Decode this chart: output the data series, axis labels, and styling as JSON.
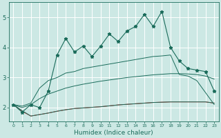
{
  "xlabel": "Humidex (Indice chaleur)",
  "bg_color": "#cce8e4",
  "grid_color": "#ffffff",
  "line_color": "#1a6b5a",
  "red_color": "#cc2222",
  "xlim": [
    -0.5,
    23.5
  ],
  "ylim": [
    1.55,
    5.5
  ],
  "yticks": [
    2,
    3,
    4,
    5
  ],
  "xticks": [
    0,
    1,
    2,
    3,
    4,
    5,
    6,
    7,
    8,
    9,
    10,
    11,
    12,
    13,
    14,
    15,
    16,
    17,
    18,
    19,
    20,
    21,
    22,
    23
  ],
  "series_main": [
    2.1,
    1.85,
    2.1,
    2.0,
    2.55,
    3.75,
    4.3,
    3.85,
    4.05,
    3.7,
    4.05,
    4.45,
    4.2,
    4.55,
    4.7,
    5.1,
    4.7,
    5.2,
    4.0,
    3.55,
    3.3,
    3.25,
    3.2,
    2.55
  ],
  "series_upper": [
    2.1,
    2.05,
    2.15,
    2.65,
    2.9,
    3.0,
    3.15,
    3.2,
    3.3,
    3.35,
    3.4,
    3.45,
    3.5,
    3.55,
    3.6,
    3.65,
    3.7,
    3.72,
    3.75,
    3.1,
    3.05,
    2.9,
    2.5,
    2.1
  ],
  "series_mid": [
    2.1,
    2.0,
    2.1,
    2.3,
    2.45,
    2.55,
    2.65,
    2.72,
    2.78,
    2.83,
    2.88,
    2.92,
    2.96,
    3.0,
    3.03,
    3.06,
    3.09,
    3.11,
    3.13,
    3.13,
    3.12,
    3.1,
    3.05,
    2.95
  ],
  "series_low": [
    2.1,
    1.9,
    1.72,
    1.77,
    1.82,
    1.88,
    1.93,
    1.97,
    1.99,
    2.01,
    2.03,
    2.06,
    2.09,
    2.11,
    2.13,
    2.15,
    2.17,
    2.18,
    2.19,
    2.19,
    2.19,
    2.19,
    2.19,
    2.15
  ],
  "series_red": [
    2.1,
    1.88,
    1.72,
    1.77,
    1.82,
    1.88,
    1.93,
    1.97,
    1.99,
    2.01,
    2.03,
    2.06,
    2.09,
    2.11,
    2.13,
    2.15,
    2.17,
    2.18,
    2.19,
    2.19,
    2.19,
    2.19,
    2.19,
    2.15
  ]
}
